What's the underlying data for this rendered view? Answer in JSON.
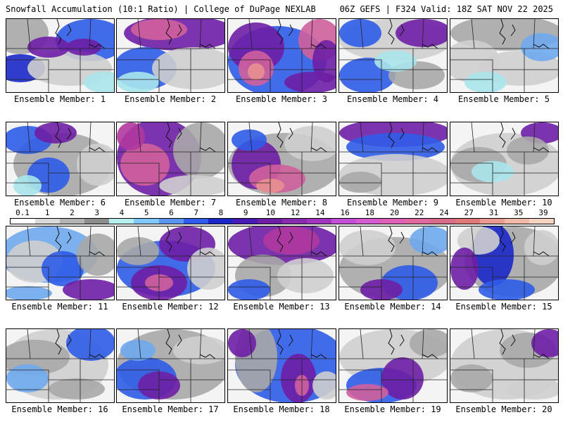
{
  "header": {
    "left": "Snowfall Accumulation (10:1 Ratio) | College of DuPage NEXLAB",
    "right": "06Z GEFS | F324 Valid: 18Z SAT NOV 22 2025"
  },
  "panels": [
    {
      "label": "Ensemble Member: 1"
    },
    {
      "label": "Ensemble Member: 2"
    },
    {
      "label": "Ensemble Member: 3"
    },
    {
      "label": "Ensemble Member: 4"
    },
    {
      "label": "Ensemble Member: 5"
    },
    {
      "label": "Ensemble Member: 6"
    },
    {
      "label": "Ensemble Member: 7"
    },
    {
      "label": "Ensemble Member: 8"
    },
    {
      "label": "Ensemble Member: 9"
    },
    {
      "label": "Ensemble Member: 10"
    },
    {
      "label": "Ensemble Member: 11"
    },
    {
      "label": "Ensemble Member: 12"
    },
    {
      "label": "Ensemble Member: 13"
    },
    {
      "label": "Ensemble Member: 14"
    },
    {
      "label": "Ensemble Member: 15"
    },
    {
      "label": "Ensemble Member: 16"
    },
    {
      "label": "Ensemble Member: 17"
    },
    {
      "label": "Ensemble Member: 18"
    },
    {
      "label": "Ensemble Member: 19"
    },
    {
      "label": "Ensemble Member: 20"
    }
  ],
  "legend": {
    "ticks": [
      "0.1",
      "1",
      "2",
      "3",
      "4",
      "5",
      "6",
      "7",
      "8",
      "9",
      "10",
      "12",
      "14",
      "16",
      "18",
      "20",
      "22",
      "24",
      "27",
      "31",
      "35",
      "39"
    ],
    "colors": [
      "#ffffff",
      "#d9d9d9",
      "#b3b3b3",
      "#8c8c8c",
      "#b4f0f0",
      "#7fc7ff",
      "#5a96f0",
      "#2f5ce8",
      "#1a28c8",
      "#4a1ab4",
      "#6e1fa5",
      "#8a2ab0",
      "#a235c0",
      "#c24fd6",
      "#d65ad0",
      "#e060b8",
      "#e06aa0",
      "#d86a8a",
      "#e07878",
      "#ea9a90",
      "#f2b8a8",
      "#f6d2c2"
    ]
  }
}
